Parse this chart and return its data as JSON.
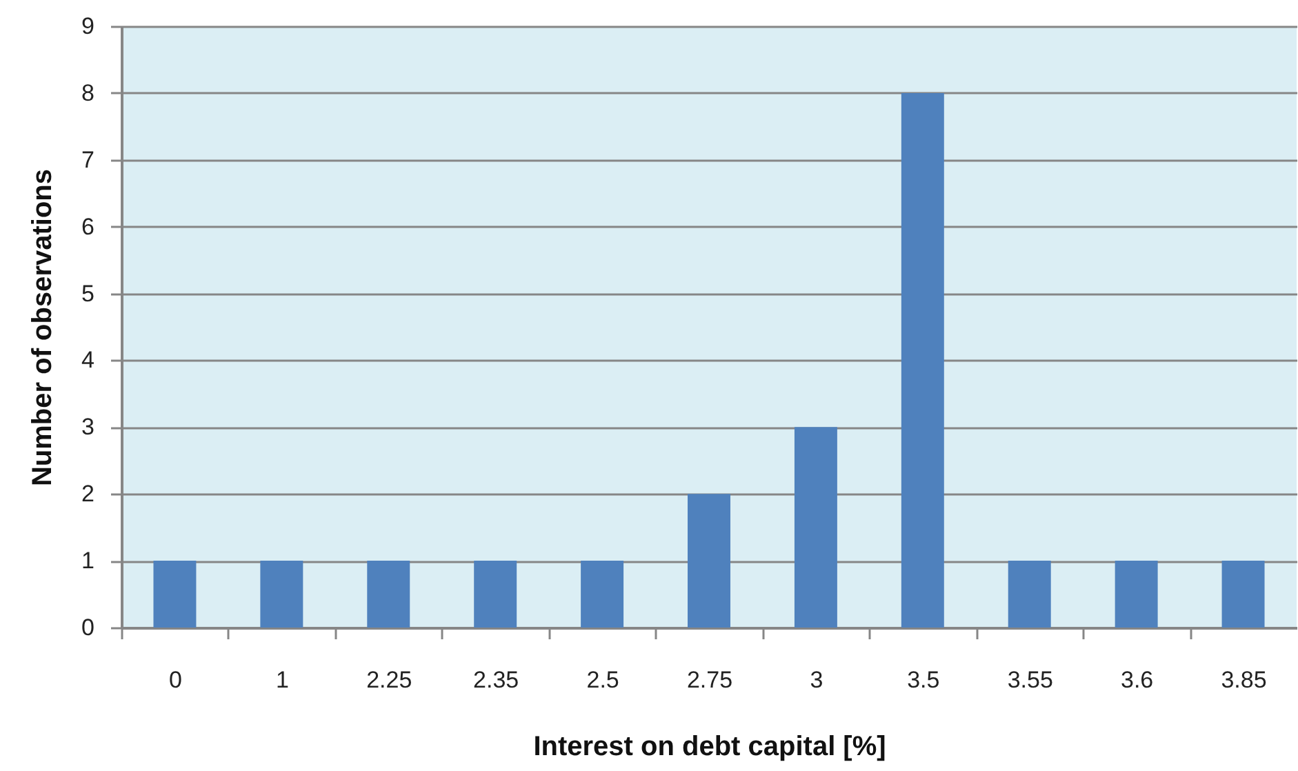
{
  "chart_data": {
    "type": "bar",
    "xlabel": "Interest on debt capital [%]",
    "ylabel": "Number of observations",
    "categories": [
      "0",
      "1",
      "2.25",
      "2.35",
      "2.5",
      "2.75",
      "3",
      "3.5",
      "3.55",
      "3.6",
      "3.85"
    ],
    "values": [
      1,
      1,
      1,
      1,
      1,
      2,
      3,
      8,
      1,
      1,
      1
    ],
    "color": "#4f81bd",
    "ylim": [
      0,
      9
    ],
    "yticks": [
      0,
      1,
      2,
      3,
      4,
      5,
      6,
      7,
      8,
      9
    ],
    "grid": "y"
  }
}
